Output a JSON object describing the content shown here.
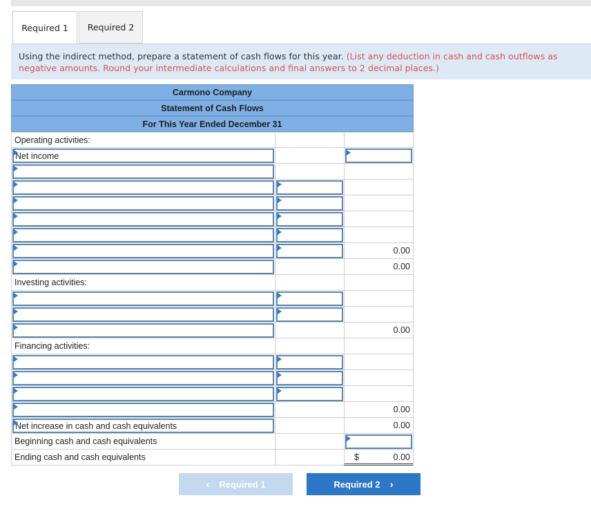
{
  "tabs": [
    {
      "label": "Required 1"
    },
    {
      "label": "Required 2"
    }
  ],
  "instructions": {
    "main": "Using the indirect method, prepare a statement of cash flows for this year.",
    "note": "(List any deduction in cash and cash outflows as negative amounts. Round your intermediate calculations and final answers to 2 decimal places.)"
  },
  "statement": {
    "company": "Carmono Company",
    "title": "Statement of Cash Flows",
    "period": "For This Year Ended December 31",
    "operating_label": "Operating activities:",
    "net_income_label": "Net income",
    "operating_subtotal_a": "0.00",
    "operating_subtotal_b": "0.00",
    "investing_label": "Investing activities:",
    "investing_subtotal": "0.00",
    "financing_label": "Financing activities:",
    "financing_subtotal": "0.00",
    "net_increase_label": "Net increase in cash and cash equivalents",
    "net_increase_value": "0.00",
    "beginning_label": "Beginning cash and cash equivalents",
    "ending_label": "Ending cash and cash equivalents",
    "currency_symbol": "$",
    "ending_value": "0.00"
  },
  "nav": {
    "prev_label": "Required 1",
    "next_label": "Required 2"
  }
}
